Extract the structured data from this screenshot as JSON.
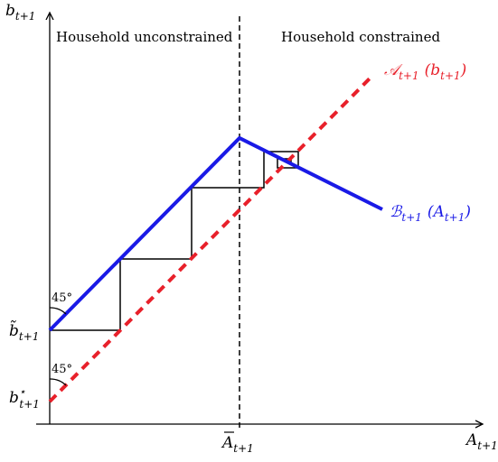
{
  "labels": {
    "y_axis": "b",
    "y_axis_sub": "t+1",
    "x_axis": "A",
    "x_axis_sub": "t+1",
    "region_left": "Household unconstrained",
    "region_right": "Household constrained",
    "threshold": "A",
    "threshold_sub": "t+1",
    "b_tilde": "b̃",
    "b_tilde_sub": "t+1",
    "b_star": "b",
    "b_star_sup": "⋆",
    "b_star_sub": "t+1",
    "angle_top": "45°",
    "angle_bottom": "45°",
    "curve_A": "𝒜",
    "curve_A_sub": "t+1",
    "curve_A_arg": "(b",
    "curve_A_arg_sub": "t+1",
    "curve_A_close": ")",
    "curve_B": "ℬ",
    "curve_B_sub": "t+1",
    "curve_B_arg": "(A",
    "curve_B_arg_sub": "t+1",
    "curve_B_close": ")"
  },
  "colors": {
    "axis": "#000000",
    "curve_A": "#e8202a",
    "curve_B": "#1a1ae6",
    "steps": "#000000"
  }
}
